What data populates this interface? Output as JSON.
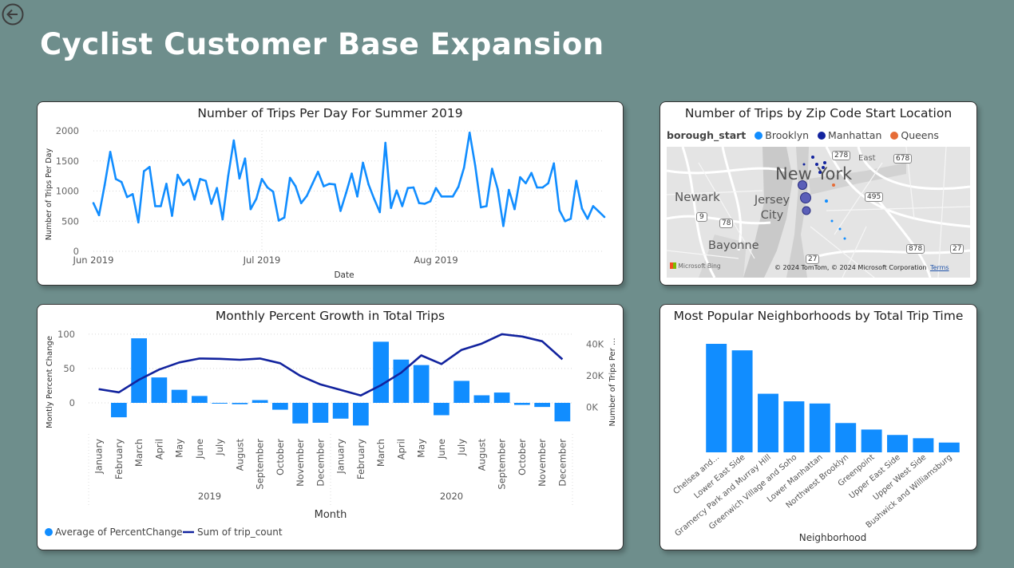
{
  "page": {
    "title": "Cyclist Customer Base Expansion"
  },
  "chart_data": [
    {
      "id": "trips-per-day",
      "type": "line",
      "title": "Number of Trips Per Day For Summer 2019",
      "xlabel": "Date",
      "ylabel": "Number of Trips Per Day",
      "x_tick_labels": [
        "Jun 2019",
        "Jul 2019",
        "Aug 2019"
      ],
      "ylim": [
        0,
        2000
      ],
      "y_ticks": [
        0,
        500,
        1000,
        1500,
        2000
      ],
      "x_start_date": "2019-06-01",
      "color": "#118dff",
      "series": [
        {
          "values": [
            800,
            600,
            1100,
            1650,
            1200,
            1150,
            900,
            950,
            480,
            1330,
            1400,
            750,
            750,
            1120,
            590,
            1270,
            1100,
            1190,
            860,
            1200,
            1170,
            790,
            1050,
            530,
            1250,
            1840,
            1210,
            1540,
            700,
            870,
            1200,
            1060,
            990,
            510,
            560,
            1220,
            1080,
            800,
            920,
            1120,
            1320,
            1080,
            1120,
            1110,
            670,
            970,
            1290,
            910,
            1470,
            1110,
            870,
            650,
            1800,
            720,
            1010,
            750,
            1050,
            1060,
            800,
            790,
            830,
            1050,
            910,
            910,
            910,
            1070,
            1390,
            1970,
            1420,
            730,
            750,
            1370,
            1030,
            420,
            1020,
            700,
            1230,
            1130,
            1300,
            1060,
            1060,
            1130,
            1460,
            680,
            500,
            540,
            1170,
            710,
            540,
            750,
            660,
            570
          ]
        }
      ]
    },
    {
      "id": "monthly-growth",
      "type": "bar+line",
      "title": "Monthly Percent Growth in Total Trips",
      "xlabel": "Month",
      "ylabel_left": "Montly Percent Change",
      "ylabel_right": "Number of Trips Per ...",
      "categories": [
        "January",
        "February",
        "March",
        "April",
        "May",
        "June",
        "July",
        "August",
        "September",
        "October",
        "November",
        "December",
        "January",
        "February",
        "March",
        "April",
        "May",
        "June",
        "July",
        "August",
        "September",
        "October",
        "November",
        "December"
      ],
      "groups": [
        {
          "label": "2019",
          "count": 12
        },
        {
          "label": "2020",
          "count": 12
        }
      ],
      "ylim_left": [
        -43,
        108
      ],
      "y_ticks_left": [
        0,
        50,
        100
      ],
      "ylim_right": [
        -16000,
        50000
      ],
      "y_ticks_right": [
        0,
        20000,
        40000
      ],
      "y_tick_labels_right": [
        "0K",
        "20K",
        "40K"
      ],
      "series": [
        {
          "name": "Average of PercentChange",
          "type": "bar",
          "color": "#118dff",
          "values": [
            0,
            -21,
            94,
            37,
            19,
            10,
            -1,
            -2,
            4,
            -10,
            -30,
            -29,
            -23,
            -33,
            89,
            63,
            55,
            -18,
            32,
            11,
            15,
            -3,
            -6,
            -27
          ]
        },
        {
          "name": "Sum of trip_count",
          "type": "line",
          "color": "#12239e",
          "values": [
            11500,
            9500,
            17500,
            24000,
            28500,
            31000,
            30800,
            30200,
            31000,
            28000,
            20000,
            14500,
            11000,
            7500,
            14000,
            22000,
            33000,
            27500,
            36500,
            40500,
            46500,
            45000,
            42000,
            30500
          ]
        }
      ],
      "legend": [
        {
          "label": "Average of PercentChange",
          "shape": "circle",
          "color": "#118dff"
        },
        {
          "label": "Sum of trip_count",
          "shape": "line",
          "color": "#12239e"
        }
      ]
    },
    {
      "id": "popular-neighborhoods",
      "type": "bar",
      "title": "Most Popular Neighborhoods by Total Trip Time",
      "xlabel": "Neighborhood",
      "color": "#118dff",
      "categories": [
        "Chelsea and...",
        "Lower East Side",
        "Gramercy Park and Murray Hill",
        "Greenwich Village and Soho",
        "Lower Manhattan",
        "Northwest Brooklyn",
        "Greenpoint",
        "Upper East Side",
        "Upper West Side",
        "Bushwick and Williamsburg"
      ],
      "values": [
        100,
        94,
        54,
        47,
        45,
        27,
        21,
        16,
        13,
        9
      ]
    }
  ],
  "map": {
    "title": "Number of Trips by Zip Code Start Location",
    "legend_title": "borough_start",
    "legend": [
      {
        "label": "Brooklyn",
        "color": "#118dff"
      },
      {
        "label": "Manhattan",
        "color": "#12239e"
      },
      {
        "label": "Queens",
        "color": "#e66c37"
      }
    ],
    "place_labels": [
      "New York",
      "Newark",
      "Jersey City",
      "Bayonne",
      "East"
    ],
    "road_shields": [
      "278",
      "678",
      "495",
      "9",
      "78",
      "27",
      "878",
      "27"
    ],
    "attribution": "© 2024 TomTom, © 2024 Microsoft Corporation",
    "terms_link": "Terms",
    "provider": "Microsoft Bing"
  }
}
